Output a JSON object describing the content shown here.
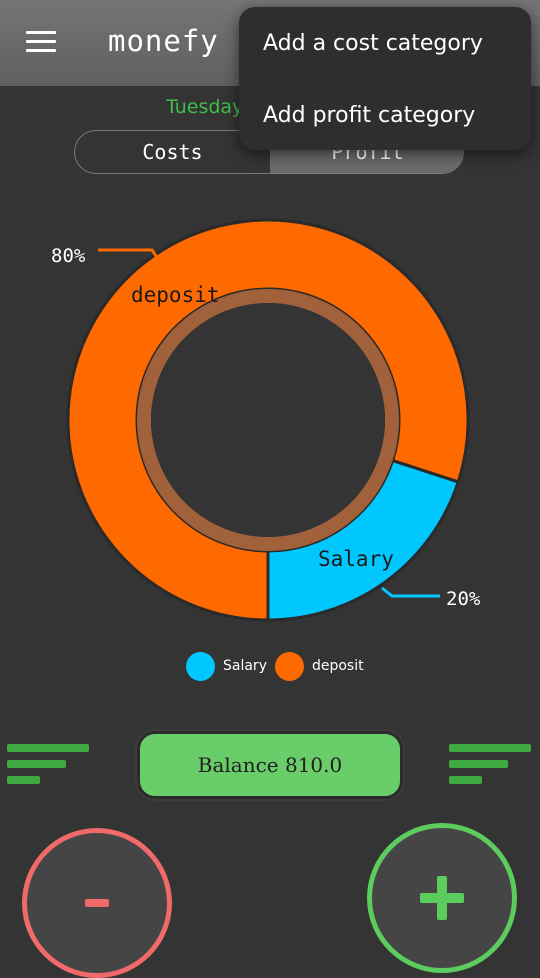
{
  "app_bar": {
    "title": "monefy",
    "menu_icon": "hamburger-menu-icon"
  },
  "date_label": "Tuesday",
  "tabs": [
    {
      "label": "Costs",
      "selected": false
    },
    {
      "label": "Profit",
      "selected": true
    }
  ],
  "chart_data": {
    "type": "pie",
    "donut": true,
    "slices": [
      {
        "label": "deposit",
        "percent": 80,
        "percent_label": "80%",
        "color": "#ff6a00"
      },
      {
        "label": "Salary",
        "percent": 20,
        "percent_label": "20%",
        "color": "#00c8ff"
      }
    ],
    "legend": [
      {
        "label": "Salary",
        "color": "#00c8ff"
      },
      {
        "label": "deposit",
        "color": "#ff6a00"
      }
    ],
    "legend_position": "bottom"
  },
  "balance": {
    "label": "Balance 810.0"
  },
  "actions": {
    "minus_label": "-",
    "plus_label": "+",
    "minus_color": "#f06a6a",
    "plus_color": "#5ccc5c"
  },
  "dropdown_menu": {
    "items": [
      {
        "label": "Add a cost category"
      },
      {
        "label": "Add profit category"
      }
    ]
  },
  "colors": {
    "background": "#343434",
    "app_bar": "#6a6a6a",
    "accent_green": "#69cd69",
    "date_green": "#3dbf4a"
  }
}
